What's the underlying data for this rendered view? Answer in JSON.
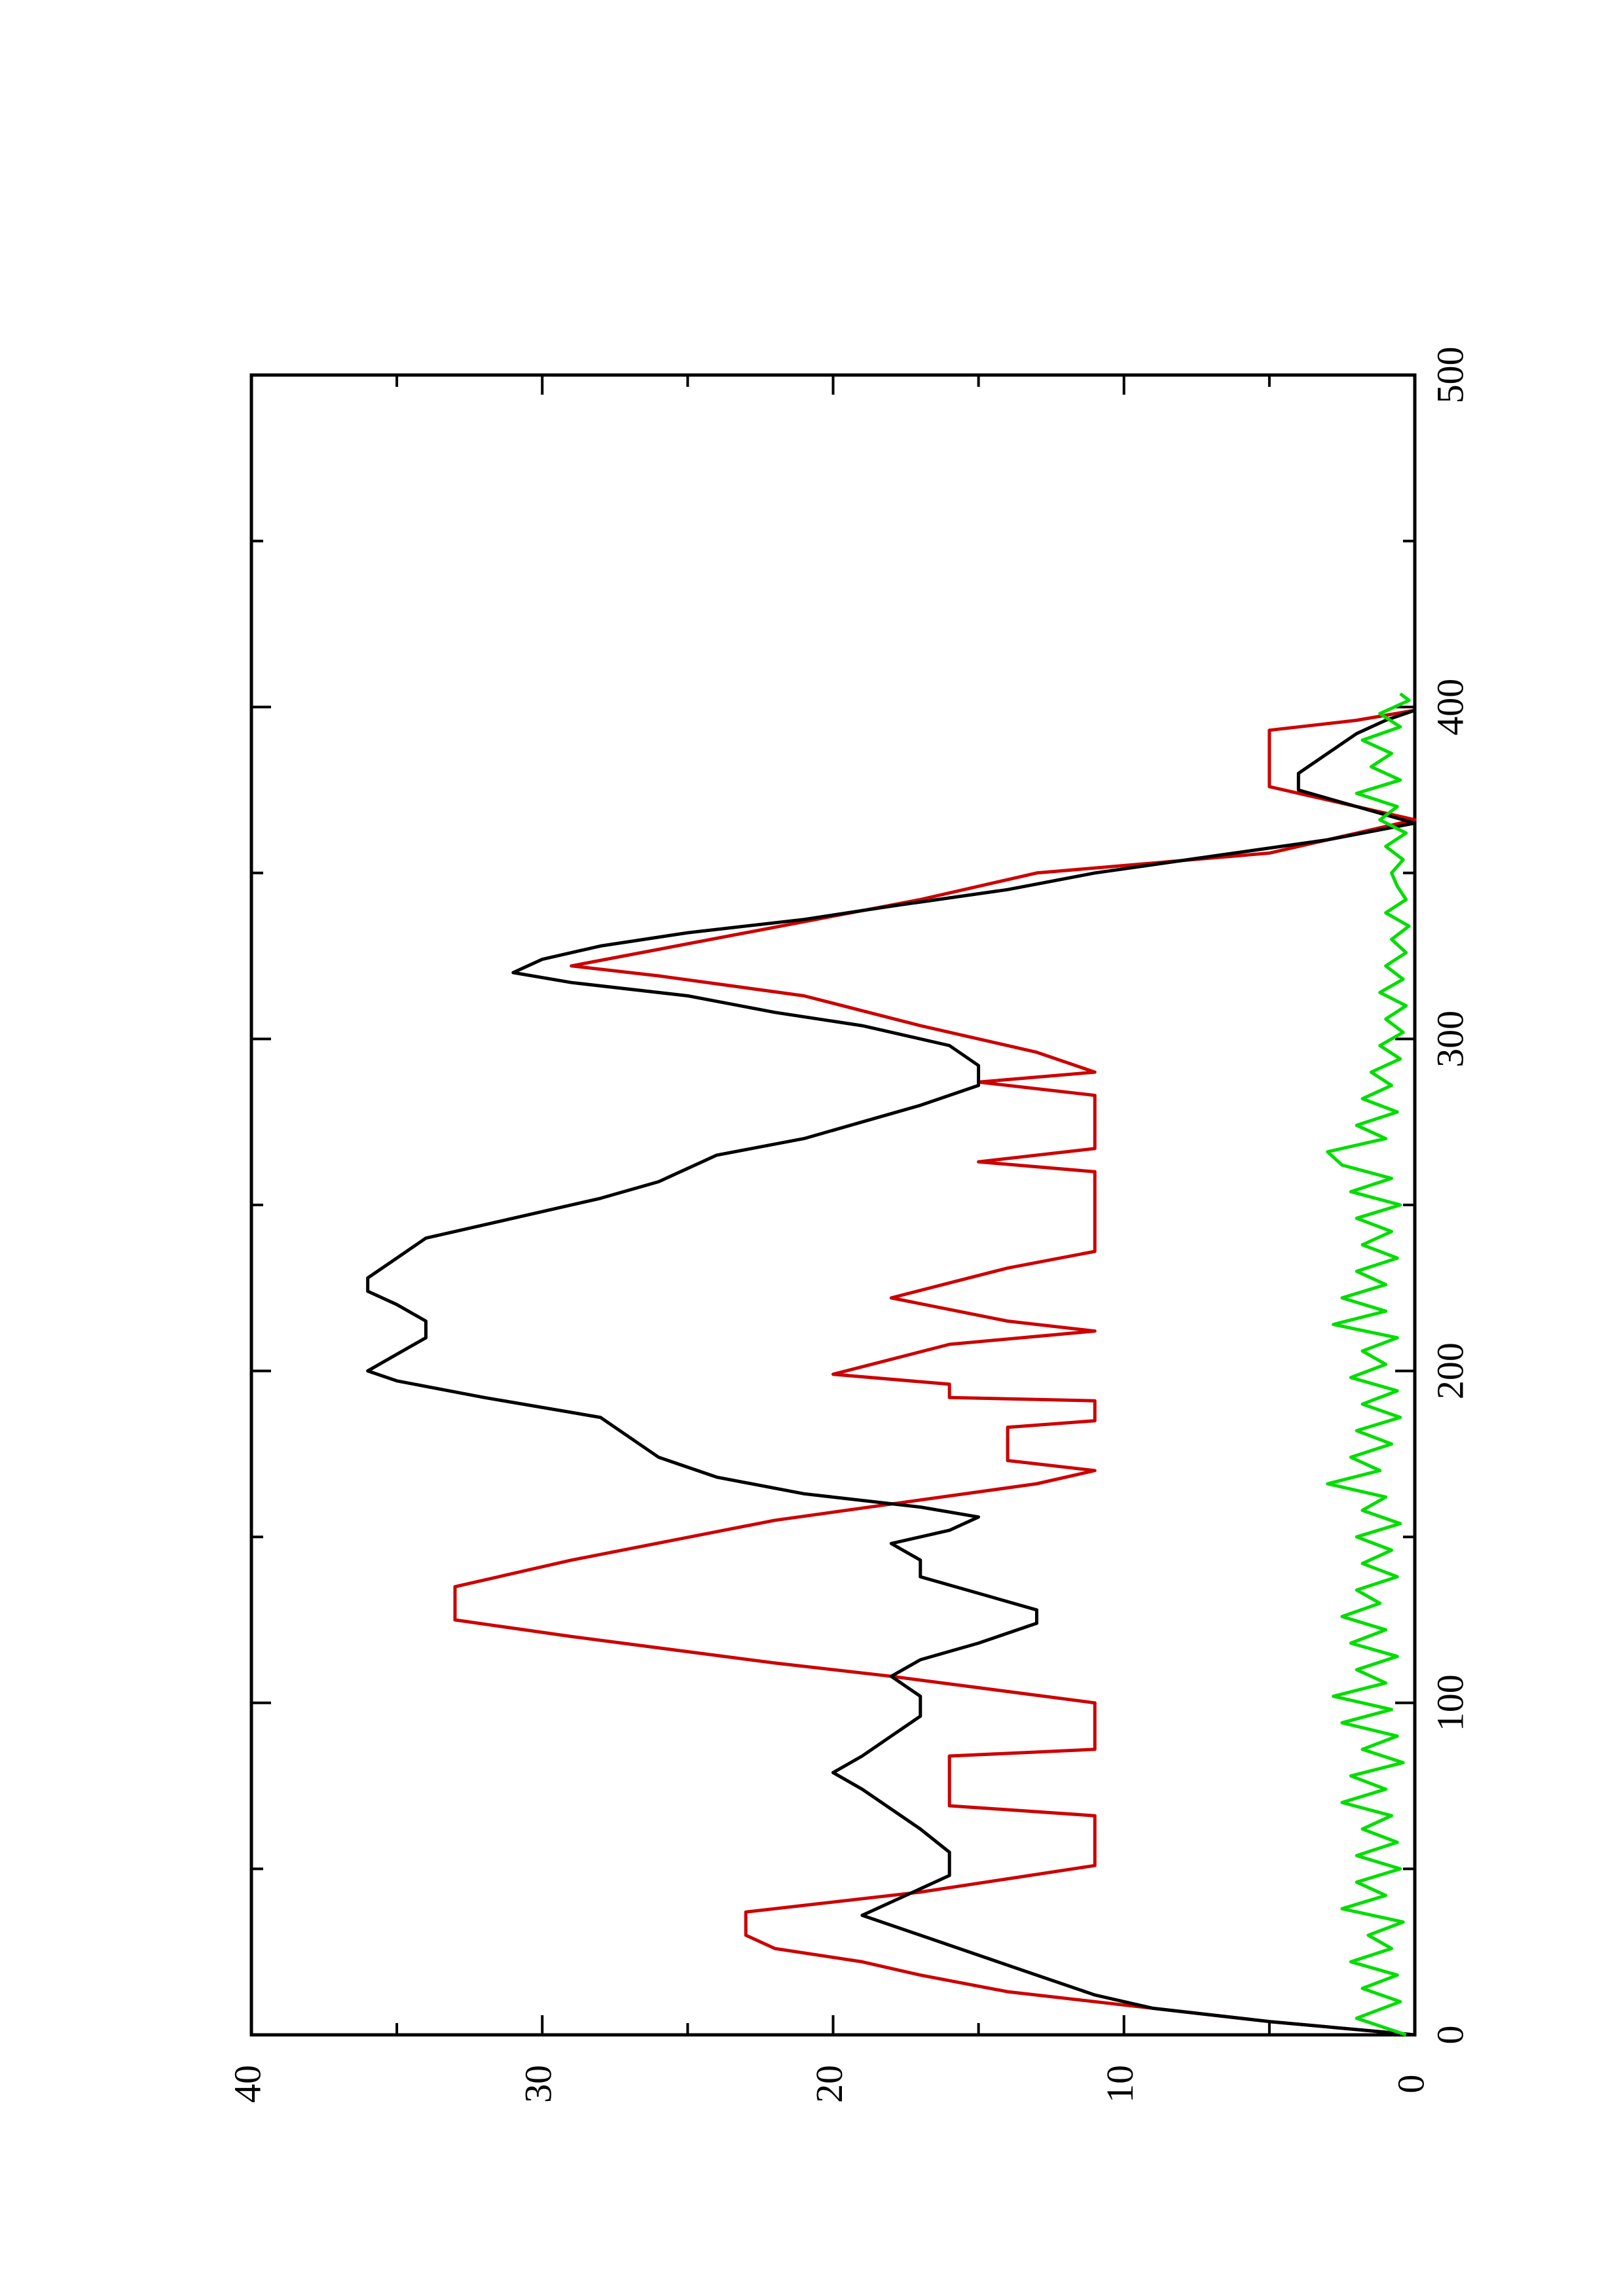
{
  "chart_data": {
    "type": "line",
    "rotated_90_ccw": true,
    "title": "",
    "xlabel": "",
    "ylabel": "",
    "xlim": [
      0,
      500
    ],
    "ylim": [
      0,
      40
    ],
    "x_ticks": [
      "0",
      "100",
      "200",
      "300",
      "400",
      "500"
    ],
    "y_ticks": [
      "0",
      "10",
      "20",
      "30",
      "40"
    ],
    "grid": false,
    "legend": "none",
    "series": [
      {
        "color": "#cc0000",
        "points": [
          [
            0,
            0
          ],
          [
            4,
            5
          ],
          [
            10,
            11
          ],
          [
            13,
            14
          ],
          [
            18,
            17
          ],
          [
            22,
            19
          ],
          [
            26,
            22
          ],
          [
            30,
            23
          ],
          [
            37,
            23
          ],
          [
            43,
            17
          ],
          [
            47,
            14
          ],
          [
            51,
            11
          ],
          [
            66,
            11
          ],
          [
            69,
            16
          ],
          [
            84,
            16
          ],
          [
            86,
            11
          ],
          [
            100,
            11
          ],
          [
            108,
            18
          ],
          [
            112,
            22
          ],
          [
            120,
            29
          ],
          [
            125,
            33
          ],
          [
            135,
            33
          ],
          [
            143,
            29
          ],
          [
            155,
            22
          ],
          [
            166,
            13
          ],
          [
            170,
            11
          ],
          [
            173,
            14
          ],
          [
            183,
            14
          ],
          [
            185,
            11
          ],
          [
            191,
            11
          ],
          [
            192,
            16
          ],
          [
            196,
            16
          ],
          [
            199,
            20
          ],
          [
            208,
            16
          ],
          [
            212,
            11
          ],
          [
            215,
            14
          ],
          [
            222,
            18
          ],
          [
            231,
            14
          ],
          [
            236,
            11
          ],
          [
            260,
            11
          ],
          [
            263,
            15
          ],
          [
            267,
            11
          ],
          [
            283,
            11
          ],
          [
            287,
            15
          ],
          [
            290,
            11
          ],
          [
            296,
            13
          ],
          [
            304,
            17
          ],
          [
            313,
            21
          ],
          [
            319,
            26
          ],
          [
            322,
            29
          ],
          [
            327,
            26
          ],
          [
            342,
            17
          ],
          [
            350,
            13
          ],
          [
            356,
            5
          ],
          [
            366,
            0
          ],
          [
            376,
            5
          ],
          [
            393,
            5
          ],
          [
            396,
            2
          ],
          [
            399,
            0
          ]
        ]
      },
      {
        "color": "#000000",
        "points": [
          [
            0,
            0
          ],
          [
            4,
            5
          ],
          [
            8,
            9
          ],
          [
            12,
            11
          ],
          [
            18,
            13
          ],
          [
            24,
            15
          ],
          [
            30,
            17
          ],
          [
            36,
            19
          ],
          [
            40,
            18
          ],
          [
            44,
            17
          ],
          [
            48,
            16
          ],
          [
            55,
            16
          ],
          [
            62,
            17
          ],
          [
            68,
            18
          ],
          [
            74,
            19
          ],
          [
            79,
            20
          ],
          [
            84,
            19
          ],
          [
            90,
            18
          ],
          [
            96,
            17
          ],
          [
            102,
            17
          ],
          [
            108,
            18
          ],
          [
            113,
            17
          ],
          [
            118,
            15
          ],
          [
            124,
            13
          ],
          [
            128,
            13
          ],
          [
            133,
            15
          ],
          [
            138,
            17
          ],
          [
            143,
            17
          ],
          [
            148,
            18
          ],
          [
            152,
            16
          ],
          [
            156,
            15
          ],
          [
            159,
            17
          ],
          [
            163,
            21
          ],
          [
            168,
            24
          ],
          [
            174,
            26
          ],
          [
            180,
            27
          ],
          [
            186,
            28
          ],
          [
            192,
            32
          ],
          [
            197,
            35
          ],
          [
            200,
            36
          ],
          [
            205,
            35
          ],
          [
            210,
            34
          ],
          [
            215,
            34
          ],
          [
            220,
            35
          ],
          [
            224,
            36
          ],
          [
            228,
            36
          ],
          [
            234,
            35
          ],
          [
            240,
            34
          ],
          [
            246,
            31
          ],
          [
            252,
            28
          ],
          [
            257,
            26
          ],
          [
            261,
            25
          ],
          [
            265,
            24
          ],
          [
            270,
            21
          ],
          [
            275,
            19
          ],
          [
            280,
            17
          ],
          [
            286,
            15
          ],
          [
            292,
            15
          ],
          [
            298,
            16
          ],
          [
            304,
            19
          ],
          [
            308,
            22
          ],
          [
            313,
            25
          ],
          [
            317,
            29
          ],
          [
            320,
            31
          ],
          [
            324,
            30
          ],
          [
            328,
            28
          ],
          [
            332,
            25
          ],
          [
            336,
            21
          ],
          [
            340,
            18
          ],
          [
            345,
            14
          ],
          [
            350,
            11
          ],
          [
            355,
            7
          ],
          [
            360,
            3
          ],
          [
            365,
            0
          ],
          [
            370,
            2
          ],
          [
            375,
            4
          ],
          [
            380,
            4
          ],
          [
            386,
            3
          ],
          [
            392,
            2
          ],
          [
            396,
            1
          ],
          [
            399,
            0
          ]
        ]
      },
      {
        "color": "#00dd00",
        "points": [
          [
            0,
            0.3
          ],
          [
            5,
            2.0
          ],
          [
            10,
            0.5
          ],
          [
            14,
            1.8
          ],
          [
            18,
            0.6
          ],
          [
            22,
            2.2
          ],
          [
            26,
            0.8
          ],
          [
            30,
            1.6
          ],
          [
            34,
            0.4
          ],
          [
            38,
            2.5
          ],
          [
            42,
            1.0
          ],
          [
            46,
            2.0
          ],
          [
            50,
            0.5
          ],
          [
            54,
            2.0
          ],
          [
            58,
            0.6
          ],
          [
            62,
            1.8
          ],
          [
            66,
            0.8
          ],
          [
            70,
            2.5
          ],
          [
            74,
            1.0
          ],
          [
            78,
            2.2
          ],
          [
            82,
            0.4
          ],
          [
            86,
            1.8
          ],
          [
            90,
            0.6
          ],
          [
            94,
            2.5
          ],
          [
            98,
            0.8
          ],
          [
            102,
            2.8
          ],
          [
            106,
            1.0
          ],
          [
            110,
            2.0
          ],
          [
            114,
            0.6
          ],
          [
            118,
            2.2
          ],
          [
            122,
            1.0
          ],
          [
            126,
            2.5
          ],
          [
            130,
            1.2
          ],
          [
            134,
            2.0
          ],
          [
            138,
            0.6
          ],
          [
            142,
            1.8
          ],
          [
            146,
            0.8
          ],
          [
            150,
            2.0
          ],
          [
            154,
            0.5
          ],
          [
            158,
            1.8
          ],
          [
            162,
            1.0
          ],
          [
            166,
            3.0
          ],
          [
            170,
            1.2
          ],
          [
            174,
            2.2
          ],
          [
            178,
            0.8
          ],
          [
            182,
            2.0
          ],
          [
            186,
            0.5
          ],
          [
            190,
            1.8
          ],
          [
            194,
            0.6
          ],
          [
            198,
            2.2
          ],
          [
            202,
            1.0
          ],
          [
            206,
            1.8
          ],
          [
            210,
            0.6
          ],
          [
            214,
            2.8
          ],
          [
            218,
            1.0
          ],
          [
            222,
            2.5
          ],
          [
            226,
            1.0
          ],
          [
            230,
            2.0
          ],
          [
            234,
            0.6
          ],
          [
            238,
            1.8
          ],
          [
            242,
            0.8
          ],
          [
            246,
            2.0
          ],
          [
            250,
            0.5
          ],
          [
            254,
            2.2
          ],
          [
            258,
            0.8
          ],
          [
            262,
            2.5
          ],
          [
            266,
            3.0
          ],
          [
            270,
            1.0
          ],
          [
            274,
            2.0
          ],
          [
            278,
            0.6
          ],
          [
            282,
            1.8
          ],
          [
            286,
            0.8
          ],
          [
            290,
            1.5
          ],
          [
            294,
            0.5
          ],
          [
            298,
            1.2
          ],
          [
            302,
            0.4
          ],
          [
            306,
            1.0
          ],
          [
            310,
            0.3
          ],
          [
            314,
            1.2
          ],
          [
            318,
            0.4
          ],
          [
            322,
            1.0
          ],
          [
            326,
            0.3
          ],
          [
            330,
            0.8
          ],
          [
            334,
            0.2
          ],
          [
            338,
            1.0
          ],
          [
            342,
            0.3
          ],
          [
            346,
            0.6
          ],
          [
            350,
            0.8
          ],
          [
            354,
            0.4
          ],
          [
            358,
            1.0
          ],
          [
            362,
            0.3
          ],
          [
            366,
            1.2
          ],
          [
            370,
            0.6
          ],
          [
            374,
            2.0
          ],
          [
            378,
            0.5
          ],
          [
            382,
            1.5
          ],
          [
            386,
            0.8
          ],
          [
            390,
            1.8
          ],
          [
            394,
            0.5
          ],
          [
            398,
            1.2
          ],
          [
            402,
            0.2
          ],
          [
            404,
            0.5
          ]
        ]
      }
    ]
  }
}
